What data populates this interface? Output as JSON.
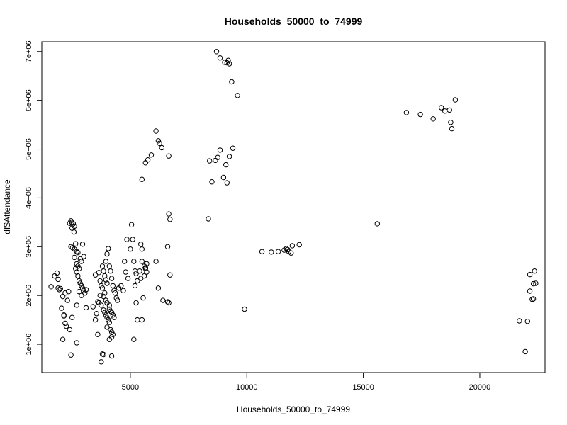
{
  "chart_data": {
    "type": "scatter",
    "title": "Households_50000_to_74999",
    "xlabel": "Households_50000_to_74999",
    "ylabel": "df$Attendance",
    "xlim": [
      1200,
      22800
    ],
    "ylim": [
      420000,
      7200000
    ],
    "x_ticks": [
      {
        "value": 5000,
        "label": "5000"
      },
      {
        "value": 10000,
        "label": "10000"
      },
      {
        "value": 15000,
        "label": "15000"
      },
      {
        "value": 20000,
        "label": "20000"
      }
    ],
    "y_ticks": [
      {
        "value": 1000000,
        "label": "1e+06"
      },
      {
        "value": 2000000,
        "label": "2e+06"
      },
      {
        "value": 3000000,
        "label": "3e+06"
      },
      {
        "value": 4000000,
        "label": "4e+06"
      },
      {
        "value": 5000000,
        "label": "5e+06"
      },
      {
        "value": 6000000,
        "label": "6e+06"
      },
      {
        "value": 7000000,
        "label": "7e+06"
      }
    ],
    "grid": false,
    "legend": "none",
    "points": [
      [
        1600,
        2180000
      ],
      [
        1750,
        2400000
      ],
      [
        1850,
        2460000
      ],
      [
        1900,
        2150000
      ],
      [
        1950,
        2120000
      ],
      [
        2000,
        2140000
      ],
      [
        1900,
        2330000
      ],
      [
        2050,
        1740000
      ],
      [
        2100,
        1980000
      ],
      [
        2150,
        1580000
      ],
      [
        2200,
        1430000
      ],
      [
        2250,
        1370000
      ],
      [
        2100,
        1100000
      ],
      [
        2300,
        1900000
      ],
      [
        2150,
        1600000
      ],
      [
        2400,
        1300000
      ],
      [
        2500,
        1550000
      ],
      [
        2450,
        780000
      ],
      [
        2700,
        1030000
      ],
      [
        2350,
        2080000
      ],
      [
        2200,
        2050000
      ],
      [
        2400,
        3480000
      ],
      [
        2450,
        3530000
      ],
      [
        2480,
        3500000
      ],
      [
        2550,
        3470000
      ],
      [
        2600,
        3420000
      ],
      [
        2500,
        3380000
      ],
      [
        2580,
        3300000
      ],
      [
        2450,
        3000000
      ],
      [
        2520,
        2980000
      ],
      [
        2600,
        2950000
      ],
      [
        2650,
        3060000
      ],
      [
        2700,
        2900000
      ],
      [
        2750,
        2880000
      ],
      [
        2600,
        2780000
      ],
      [
        2700,
        2650000
      ],
      [
        2750,
        2600000
      ],
      [
        2800,
        2550000
      ],
      [
        2850,
        2750000
      ],
      [
        2900,
        2700000
      ],
      [
        2950,
        3050000
      ],
      [
        3000,
        2800000
      ],
      [
        2650,
        2550000
      ],
      [
        2700,
        2480000
      ],
      [
        2750,
        2400000
      ],
      [
        2800,
        2300000
      ],
      [
        2850,
        2250000
      ],
      [
        2900,
        2200000
      ],
      [
        2950,
        2150000
      ],
      [
        3000,
        2100000
      ],
      [
        3050,
        2050000
      ],
      [
        3100,
        2120000
      ],
      [
        2800,
        2080000
      ],
      [
        2900,
        2000000
      ],
      [
        3100,
        1750000
      ],
      [
        2700,
        1800000
      ],
      [
        3400,
        1770000
      ],
      [
        3500,
        1500000
      ],
      [
        3550,
        1630000
      ],
      [
        3600,
        1870000
      ],
      [
        3500,
        2420000
      ],
      [
        3650,
        2470000
      ],
      [
        3700,
        2300000
      ],
      [
        3750,
        2200000
      ],
      [
        3800,
        2600000
      ],
      [
        3850,
        2500000
      ],
      [
        3900,
        2400000
      ],
      [
        3950,
        2320000
      ],
      [
        4000,
        2250000
      ],
      [
        3800,
        2150000
      ],
      [
        3900,
        2050000
      ],
      [
        3850,
        1980000
      ],
      [
        3950,
        1900000
      ],
      [
        4000,
        1850000
      ],
      [
        3750,
        1800000
      ],
      [
        3850,
        1700000
      ],
      [
        3900,
        1650000
      ],
      [
        3950,
        1600000
      ],
      [
        4000,
        1550000
      ],
      [
        4050,
        1500000
      ],
      [
        4100,
        1720000
      ],
      [
        4150,
        1680000
      ],
      [
        4200,
        1650000
      ],
      [
        4250,
        1600000
      ],
      [
        4300,
        1550000
      ],
      [
        4100,
        1450000
      ],
      [
        4150,
        1300000
      ],
      [
        4200,
        1250000
      ],
      [
        4250,
        1200000
      ],
      [
        4200,
        1150000
      ],
      [
        4100,
        1100000
      ],
      [
        4050,
        2960000
      ],
      [
        4000,
        2850000
      ],
      [
        3950,
        2700000
      ],
      [
        4100,
        2600000
      ],
      [
        4150,
        2500000
      ],
      [
        4200,
        2350000
      ],
      [
        4250,
        2200000
      ],
      [
        4300,
        2100000
      ],
      [
        4350,
        2050000
      ],
      [
        4400,
        1950000
      ],
      [
        4450,
        1900000
      ],
      [
        4500,
        2150000
      ],
      [
        3800,
        800000
      ],
      [
        3850,
        790000
      ],
      [
        3750,
        640000
      ],
      [
        4200,
        760000
      ],
      [
        3600,
        1200000
      ],
      [
        3700,
        2000000
      ],
      [
        3650,
        1850000
      ],
      [
        4000,
        1350000
      ],
      [
        4100,
        1800000
      ],
      [
        4600,
        2200000
      ],
      [
        4700,
        2100000
      ],
      [
        4800,
        2480000
      ],
      [
        4750,
        2700000
      ],
      [
        4850,
        3150000
      ],
      [
        4900,
        2350000
      ],
      [
        5000,
        2950000
      ],
      [
        5050,
        3450000
      ],
      [
        5100,
        3150000
      ],
      [
        5150,
        2700000
      ],
      [
        5200,
        2500000
      ],
      [
        5250,
        2450000
      ],
      [
        5300,
        2300000
      ],
      [
        5200,
        2200000
      ],
      [
        5250,
        1850000
      ],
      [
        5300,
        1500000
      ],
      [
        5150,
        1100000
      ],
      [
        5400,
        2500000
      ],
      [
        5450,
        2350000
      ],
      [
        5500,
        2700000
      ],
      [
        5450,
        3050000
      ],
      [
        5500,
        2950000
      ],
      [
        5600,
        2600000
      ],
      [
        5650,
        2550000
      ],
      [
        5700,
        2480000
      ],
      [
        5600,
        2400000
      ],
      [
        5550,
        1950000
      ],
      [
        5500,
        1500000
      ],
      [
        5700,
        2650000
      ],
      [
        5650,
        2570000
      ],
      [
        6100,
        2700000
      ],
      [
        6200,
        2150000
      ],
      [
        6400,
        1900000
      ],
      [
        6600,
        3000000
      ],
      [
        6650,
        3670000
      ],
      [
        6700,
        3560000
      ],
      [
        6600,
        1870000
      ],
      [
        6650,
        1850000
      ],
      [
        6700,
        2420000
      ],
      [
        5500,
        4380000
      ],
      [
        5650,
        4720000
      ],
      [
        5750,
        4780000
      ],
      [
        5900,
        4880000
      ],
      [
        6100,
        5370000
      ],
      [
        6200,
        5170000
      ],
      [
        6250,
        5120000
      ],
      [
        6350,
        5030000
      ],
      [
        6650,
        4860000
      ],
      [
        8350,
        3570000
      ],
      [
        8400,
        4760000
      ],
      [
        8500,
        4330000
      ],
      [
        8650,
        4770000
      ],
      [
        8750,
        4830000
      ],
      [
        8850,
        4980000
      ],
      [
        9000,
        4420000
      ],
      [
        9100,
        4680000
      ],
      [
        9150,
        4310000
      ],
      [
        9250,
        4850000
      ],
      [
        9400,
        5020000
      ],
      [
        8700,
        7000000
      ],
      [
        8850,
        6870000
      ],
      [
        9050,
        6780000
      ],
      [
        9150,
        6770000
      ],
      [
        9200,
        6820000
      ],
      [
        9250,
        6750000
      ],
      [
        9350,
        6380000
      ],
      [
        9600,
        6100000
      ],
      [
        9900,
        1720000
      ],
      [
        10650,
        2900000
      ],
      [
        11050,
        2890000
      ],
      [
        11350,
        2900000
      ],
      [
        11600,
        2930000
      ],
      [
        11700,
        2960000
      ],
      [
        11750,
        2940000
      ],
      [
        11800,
        2900000
      ],
      [
        11900,
        2870000
      ],
      [
        11950,
        3020000
      ],
      [
        12250,
        3040000
      ],
      [
        15600,
        3470000
      ],
      [
        16850,
        5750000
      ],
      [
        17450,
        5710000
      ],
      [
        18000,
        5620000
      ],
      [
        18350,
        5850000
      ],
      [
        18500,
        5780000
      ],
      [
        18700,
        5800000
      ],
      [
        18750,
        5550000
      ],
      [
        18800,
        5420000
      ],
      [
        18950,
        6010000
      ],
      [
        21700,
        1480000
      ],
      [
        21950,
        850000
      ],
      [
        22050,
        1470000
      ],
      [
        22150,
        2430000
      ],
      [
        22150,
        2090000
      ],
      [
        22250,
        1920000
      ],
      [
        22300,
        1930000
      ],
      [
        22300,
        2240000
      ],
      [
        22350,
        2500000
      ],
      [
        22400,
        2250000
      ]
    ]
  }
}
